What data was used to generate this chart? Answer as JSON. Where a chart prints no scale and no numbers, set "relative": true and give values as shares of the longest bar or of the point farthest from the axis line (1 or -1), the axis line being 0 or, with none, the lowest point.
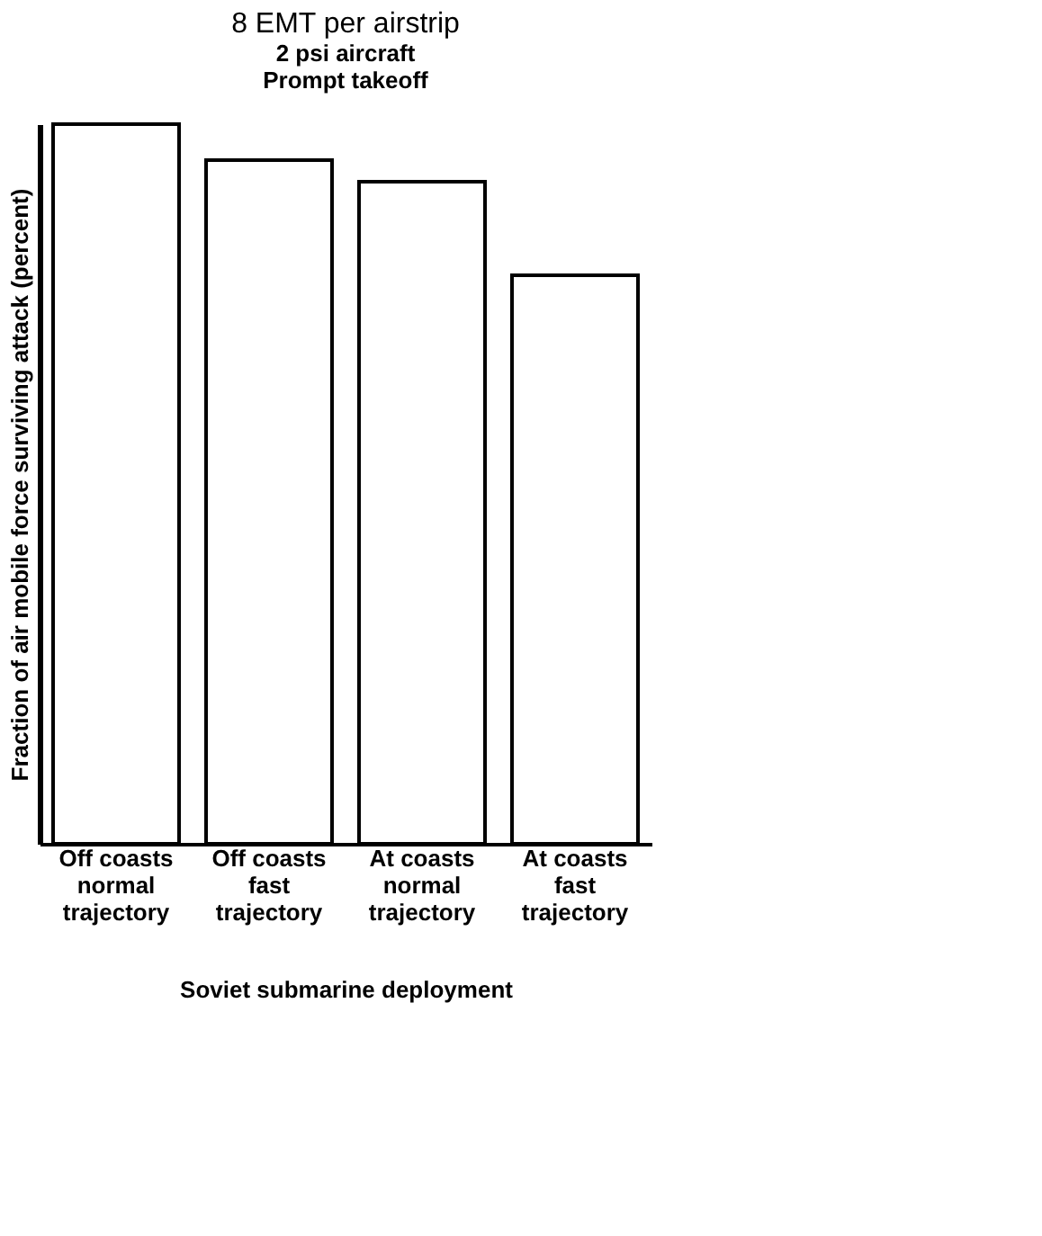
{
  "chart_data": {
    "type": "bar",
    "title": "8 EMT per airstrip",
    "subtitle": "2 psi aircraft\nPrompt takeoff",
    "xlabel": "Soviet submarine deployment",
    "ylabel": "Fraction of air mobile force surviving attack (percent)",
    "categories": [
      "Off coasts\nnormal\ntrajectory",
      "Off coasts\nfast\ntrajectory",
      "At coasts\nnormal\ntrajectory",
      "At coasts\nfast\ntrajectory"
    ],
    "values": [
      1,
      0.95,
      0.92,
      0.79
    ],
    "color": "#ffffff",
    "relative": true,
    "grid": false
  }
}
